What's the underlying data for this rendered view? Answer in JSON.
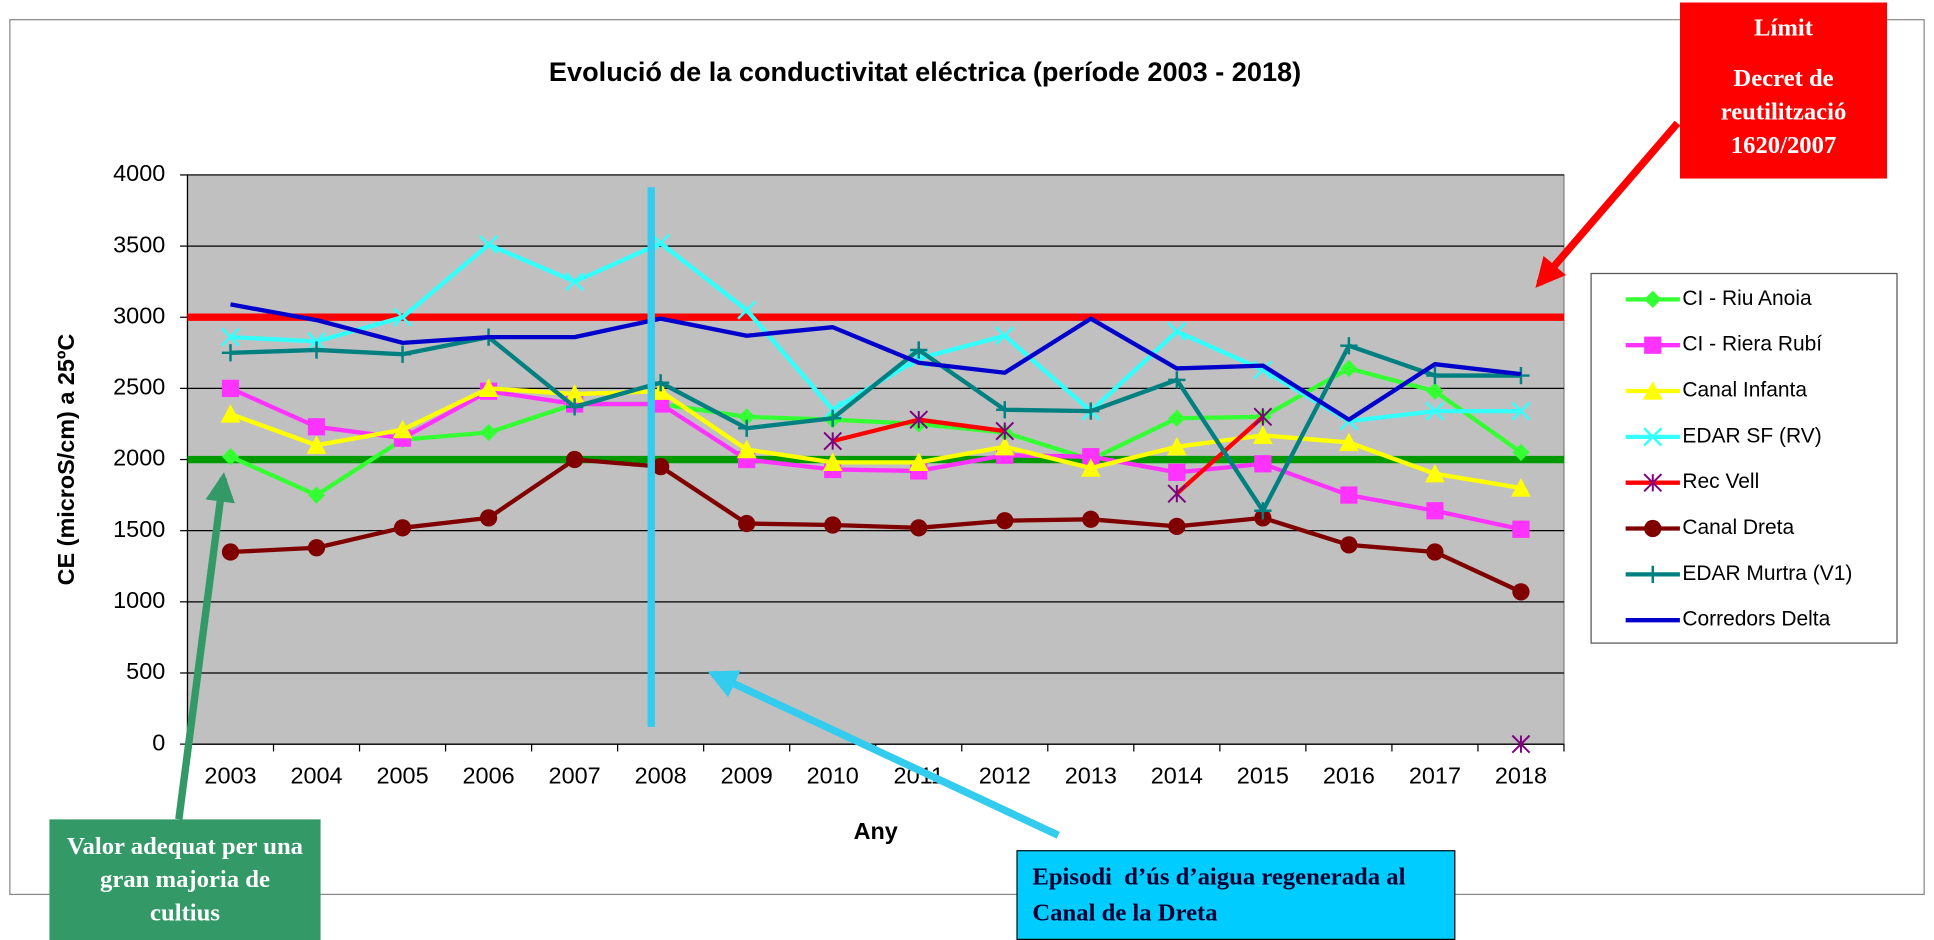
{
  "chart_data": {
    "type": "line",
    "title": "Evolució de la conductivitat eléctrica (període 2003 - 2018)",
    "x_label": "Any",
    "y_label": "CE (microS/cm) a 25ºC",
    "categories": [
      "2003",
      "2004",
      "2005",
      "2006",
      "2007",
      "2008",
      "2009",
      "2010",
      "2011",
      "2012",
      "2013",
      "2014",
      "2015",
      "2016",
      "2017",
      "2018"
    ],
    "ylim": [
      0,
      4000
    ],
    "yticks": [
      0,
      500,
      1000,
      1500,
      2000,
      2500,
      3000,
      3500,
      4000
    ],
    "grid": true,
    "plot_background": "#c0c0c0",
    "legend": "right",
    "reference_lines": [
      {
        "value": 3000,
        "color": "#ff0000"
      },
      {
        "value": 2000,
        "color": "#009900"
      }
    ],
    "series": [
      {
        "name": "CI - Riu Anoia",
        "color": "#33ff33",
        "marker": "diamond",
        "values": [
          2020,
          1750,
          2140,
          2190,
          2390,
          2390,
          2300,
          2280,
          2250,
          2190,
          2000,
          2290,
          2300,
          2640,
          2480,
          2050
        ]
      },
      {
        "name": "CI - Riera Rubí",
        "color": "#ff33ff",
        "marker": "square",
        "values": [
          2500,
          2230,
          2150,
          2480,
          2390,
          2390,
          2000,
          1930,
          1920,
          2030,
          2020,
          1910,
          1970,
          1750,
          1640,
          1510
        ]
      },
      {
        "name": "Canal Infanta",
        "color": "#ffff00",
        "marker": "triangle",
        "values": [
          2320,
          2100,
          2210,
          2500,
          2460,
          2480,
          2070,
          1980,
          1980,
          2090,
          1940,
          2090,
          2170,
          2120,
          1900,
          1800
        ]
      },
      {
        "name": "EDAR SF (RV)",
        "color": "#33ffff",
        "marker": "x",
        "values": [
          2860,
          2830,
          3000,
          3510,
          3250,
          3520,
          3050,
          2350,
          2710,
          2870,
          2340,
          2900,
          2630,
          2270,
          2340,
          2340
        ]
      },
      {
        "name": "Rec Vell",
        "color": "#ff0000",
        "marker_color": "#800080",
        "marker": "asterisk",
        "values": [
          null,
          null,
          null,
          null,
          null,
          null,
          null,
          2130,
          2280,
          2200,
          null,
          1760,
          2300,
          null,
          null,
          0
        ]
      },
      {
        "name": "Canal Dreta",
        "color": "#800000",
        "marker": "circle",
        "values": [
          1350,
          1380,
          1520,
          1590,
          2000,
          1950,
          1550,
          1540,
          1520,
          1570,
          1580,
          1530,
          1590,
          1400,
          1350,
          1070
        ]
      },
      {
        "name": "EDAR Murtra (V1)",
        "color": "#008080",
        "marker": "plus",
        "values": [
          2750,
          2770,
          2740,
          2860,
          2370,
          2540,
          2220,
          2290,
          2770,
          2350,
          2340,
          2560,
          1640,
          2800,
          2590,
          2590
        ]
      },
      {
        "name": "Corredors Delta",
        "color": "#0000cc",
        "marker": "none",
        "values": [
          3090,
          2980,
          2820,
          2860,
          2860,
          2990,
          2870,
          2930,
          2680,
          2610,
          2990,
          2640,
          2660,
          2280,
          2670,
          2600
        ]
      }
    ],
    "annotations": [
      "Límit",
      "Decret de reutilització 1620/2007",
      "Valor adequat per una gran majoria de cultius",
      "Episodi  d’ús d’aigua regenerada al Canal de la Dreta"
    ]
  }
}
